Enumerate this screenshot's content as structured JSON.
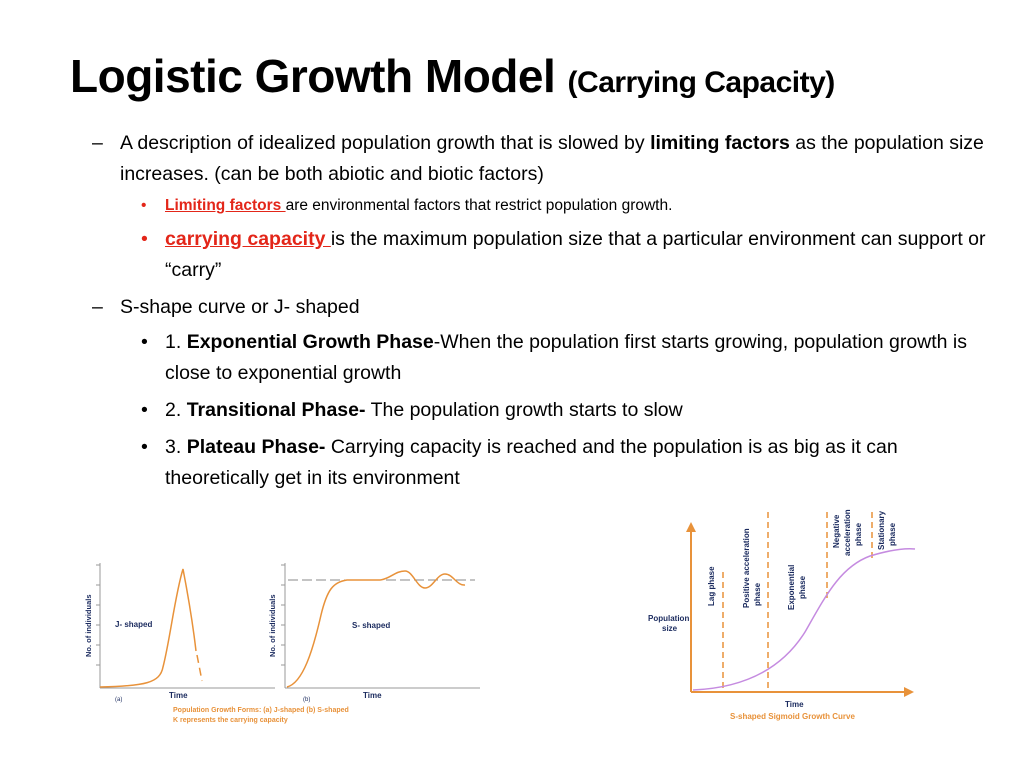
{
  "slide": {
    "title": "Logistic Growth Model",
    "subtitle": "(Carrying Capacity)",
    "bullets": [
      {
        "marker": "–",
        "text_a": "A description of idealized population growth that is slowed by ",
        "bold": "limiting factors",
        "text_b": " as the population size increases. (can be both abiotic and biotic factors)"
      },
      {
        "marker": "•",
        "term": "Limiting factors ",
        "text": "are environmental factors that restrict population growth."
      },
      {
        "marker": "•",
        "term": "carrying capacity ",
        "text": "is the maximum population size that a particular environment can  support or “carry”"
      },
      {
        "marker": "–",
        "text": "S-shape curve or J- shaped"
      },
      {
        "marker": "•",
        "num": "1. ",
        "bold": "Exponential Growth Phase",
        "text": "-When the population first starts growing, population growth is close to exponential growth"
      },
      {
        "marker": "•",
        "num": "2. ",
        "bold": "Transitional Phase-",
        "text": " The population growth starts to slow"
      },
      {
        "marker": "•",
        "num": "3. ",
        "bold": "Plateau Phase-",
        "text": " Carrying capacity is reached and the population is as big as it can theoretically get in its environment"
      }
    ]
  },
  "figure_left": {
    "ylabel": "No. of individuals",
    "xlabel_a": "Time",
    "xlabel_b": "Time",
    "label_j": "J- shaped",
    "label_s": "S- shaped",
    "panel_a": "(a)",
    "panel_b": "(b)",
    "caption_1": "Population Growth Forms: (a) J-shaped (b) S-shaped",
    "caption_2": "K represents the carrying capacity",
    "curve_color": "#e8923a",
    "text_color": "#1a2a5e",
    "caption_color": "#e8923a"
  },
  "figure_right": {
    "ylabel_1": "Population",
    "ylabel_2": "size",
    "xlabel": "Time",
    "caption": "S-shaped Sigmoid Growth Curve",
    "phases": [
      {
        "line1": "Lag phase",
        "line2": ""
      },
      {
        "line1": "Positive acceleration",
        "line2": "phase"
      },
      {
        "line1": "Exponential",
        "line2": "phase"
      },
      {
        "line1": "Negative",
        "line2": "acceleration",
        "line3": "phase"
      },
      {
        "line1": "Stationary",
        "line2": "phase"
      }
    ],
    "axis_color": "#e8923a",
    "dash_color": "#e8923a",
    "curve_color": "#c58be0",
    "text_color": "#1a2a5e",
    "caption_color": "#e8923a"
  }
}
